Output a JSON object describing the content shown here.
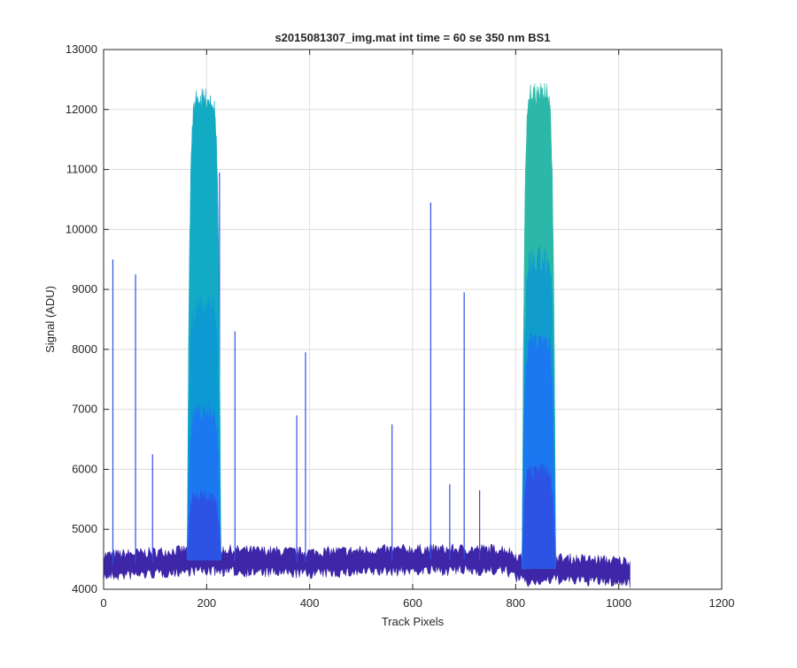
{
  "chart_data": {
    "type": "area",
    "title": "s2015081307_img.mat int time = 60 se  350 nm BS1",
    "xlabel": "Track Pixels",
    "ylabel": "Signal (ADU)",
    "xlim": [
      0,
      1200
    ],
    "ylim": [
      4000,
      13000
    ],
    "xticks": [
      0,
      200,
      400,
      600,
      800,
      1000,
      1200
    ],
    "yticks": [
      4000,
      5000,
      6000,
      7000,
      8000,
      9000,
      10000,
      11000,
      12000,
      13000
    ],
    "grid": true,
    "colormap": [
      "#3e26a8",
      "#2f4fe3",
      "#1c78f0",
      "#0d98d5",
      "#13abc4",
      "#2bb8a8",
      "#5dc081"
    ],
    "baseline": {
      "x": [
        0,
        100,
        180,
        400,
        600,
        780,
        820,
        880,
        1022
      ],
      "y": [
        4400,
        4450,
        4500,
        4450,
        4500,
        4500,
        4300,
        4350,
        4300
      ]
    },
    "peaks": [
      {
        "center": 195,
        "start": 162,
        "end": 228,
        "max": 12350,
        "inner_max": 7150
      },
      {
        "center": 845,
        "start": 812,
        "end": 878,
        "max": 12450,
        "inner_max": 8300
      }
    ],
    "spikes": {
      "x": [
        18,
        62,
        95,
        225,
        255,
        375,
        392,
        560,
        635,
        672,
        700,
        730
      ],
      "y": [
        9500,
        9250,
        6250,
        10950,
        8300,
        6900,
        7950,
        6750,
        10450,
        5750,
        8950,
        5650
      ]
    }
  }
}
